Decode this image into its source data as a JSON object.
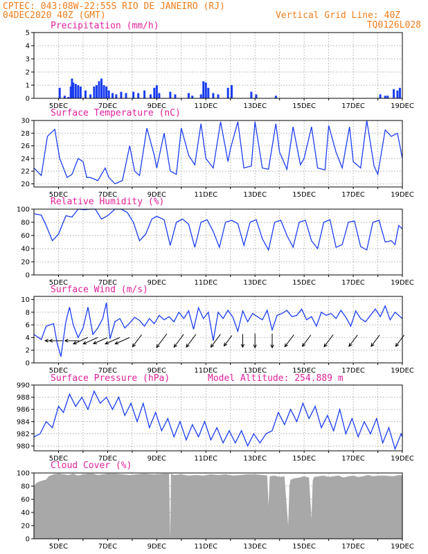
{
  "header": {
    "line1": "CPTEC:   043:08W-22:55S  RIO DE JANEIRO (RJ)",
    "line2": "04DEC2020 40Z (GMT)",
    "grid_note": "Vertical Grid Line: 40Z",
    "code": "TQ0126L028"
  },
  "colors": {
    "header": "#ee7d1a",
    "title": "#e0209a",
    "series": "#1a3cf0",
    "cloud": "#a8a8a8"
  },
  "chart_data": [
    {
      "id": "precip",
      "type": "bar",
      "title": "Precipitation (mm/h)",
      "ylim": [
        0,
        5
      ],
      "yticks": [
        0,
        1,
        2,
        3,
        4,
        5
      ],
      "x_days": [
        4,
        5,
        6,
        7,
        8,
        9,
        10,
        11,
        12,
        13,
        14,
        15,
        16,
        17,
        18,
        19
      ],
      "xticks": [
        "5DEC",
        "7DEC",
        "9DEC",
        "11DEC",
        "13DEC",
        "15DEC",
        "17DEC",
        "19DEC"
      ],
      "x": [
        5.05,
        5.25,
        5.4,
        5.5,
        5.55,
        5.6,
        5.7,
        5.8,
        5.9,
        6.1,
        6.3,
        6.45,
        6.55,
        6.65,
        6.75,
        6.85,
        6.95,
        7.05,
        7.2,
        7.35,
        7.55,
        7.75,
        8.05,
        8.25,
        8.5,
        8.75,
        8.9,
        9.0,
        9.1,
        9.55,
        9.75,
        10.3,
        10.45,
        10.8,
        10.9,
        11.0,
        11.1,
        11.3,
        11.5,
        11.9,
        12.05,
        12.85,
        13.05,
        13.85,
        18.1,
        18.3,
        18.4,
        18.65,
        18.8,
        18.9
      ],
      "values": [
        0.8,
        0.2,
        0.1,
        0.9,
        1.5,
        1.2,
        1.1,
        1.0,
        0.9,
        0.6,
        0.3,
        0.9,
        1.0,
        1.3,
        1.5,
        1.0,
        0.9,
        0.6,
        0.4,
        0.3,
        0.5,
        0.4,
        0.5,
        0.4,
        0.6,
        0.3,
        0.8,
        1.0,
        0.4,
        0.5,
        0.3,
        0.4,
        0.2,
        0.3,
        1.3,
        1.2,
        0.8,
        0.4,
        0.3,
        0.8,
        1.0,
        0.5,
        0.3,
        0.2,
        0.3,
        0.2,
        0.2,
        0.7,
        0.6,
        0.8
      ]
    },
    {
      "id": "temp",
      "type": "line",
      "title": "Surface Temperature (nC)",
      "ylim": [
        19.5,
        30
      ],
      "yticks": [
        20,
        22,
        24,
        26,
        28,
        30
      ],
      "xticks": [
        "5DEC",
        "7DEC",
        "9DEC",
        "11DEC",
        "13DEC",
        "15DEC",
        "17DEC",
        "19DEC"
      ],
      "x": [
        4.0,
        4.3,
        4.55,
        4.85,
        5.05,
        5.35,
        5.55,
        5.8,
        6.0,
        6.15,
        6.3,
        6.6,
        6.9,
        7.05,
        7.3,
        7.6,
        7.9,
        8.1,
        8.3,
        8.6,
        8.9,
        9.0,
        9.3,
        9.55,
        9.8,
        10.0,
        10.3,
        10.55,
        10.8,
        11.0,
        11.3,
        11.6,
        11.9,
        12.0,
        12.3,
        12.55,
        12.85,
        13.0,
        13.3,
        13.55,
        13.85,
        14.0,
        14.3,
        14.55,
        14.85,
        15.0,
        15.3,
        15.55,
        15.85,
        16.0,
        16.3,
        16.55,
        16.85,
        17.0,
        17.3,
        17.55,
        17.85,
        18.0,
        18.3,
        18.55,
        18.8,
        19.0
      ],
      "values": [
        22.5,
        21.3,
        27.5,
        28.6,
        24.0,
        21.0,
        21.5,
        24.0,
        23.5,
        21.0,
        21.0,
        20.5,
        22.5,
        21.0,
        20.0,
        20.5,
        26.0,
        22.0,
        21.3,
        28.8,
        24.5,
        22.5,
        28.0,
        22.0,
        21.5,
        28.8,
        24.5,
        23.0,
        29.5,
        24.0,
        22.5,
        29.8,
        23.5,
        25.5,
        29.8,
        22.5,
        22.8,
        29.8,
        22.5,
        22.3,
        29.5,
        25.0,
        22.3,
        29.0,
        23.0,
        24.0,
        29.0,
        22.5,
        22.2,
        29.2,
        25.0,
        22.5,
        29.0,
        23.5,
        22.5,
        30.0,
        22.8,
        21.5,
        28.5,
        27.5,
        28.0,
        24.0
      ]
    },
    {
      "id": "rh",
      "type": "line",
      "title": "Relative Humidity (%)",
      "ylim": [
        0,
        100
      ],
      "yticks": [
        0,
        20,
        40,
        60,
        80,
        100
      ],
      "xticks": [
        "5DEC",
        "7DEC",
        "9DEC",
        "11DEC",
        "13DEC",
        "15DEC",
        "17DEC",
        "19DEC"
      ],
      "x": [
        4.0,
        4.3,
        4.5,
        4.75,
        5.0,
        5.3,
        5.55,
        5.8,
        6.05,
        6.3,
        6.5,
        6.75,
        7.0,
        7.3,
        7.55,
        7.8,
        8.05,
        8.3,
        8.55,
        8.8,
        9.0,
        9.3,
        9.55,
        9.8,
        10.05,
        10.3,
        10.55,
        10.8,
        11.05,
        11.3,
        11.55,
        11.8,
        12.05,
        12.3,
        12.55,
        12.8,
        13.05,
        13.3,
        13.55,
        13.8,
        14.05,
        14.3,
        14.55,
        14.8,
        15.05,
        15.3,
        15.55,
        15.8,
        16.05,
        16.3,
        16.55,
        16.8,
        17.05,
        17.3,
        17.55,
        17.8,
        18.05,
        18.3,
        18.55,
        18.7,
        18.85,
        19.0
      ],
      "values": [
        93,
        91,
        75,
        52,
        62,
        90,
        88,
        100,
        99,
        100,
        100,
        85,
        90,
        100,
        100,
        95,
        80,
        52,
        62,
        85,
        89,
        84,
        45,
        80,
        85,
        77,
        42,
        80,
        84,
        66,
        42,
        80,
        83,
        78,
        45,
        80,
        84,
        55,
        38,
        80,
        83,
        60,
        42,
        80,
        83,
        52,
        40,
        80,
        84,
        42,
        46,
        80,
        82,
        43,
        38,
        80,
        83,
        50,
        52,
        46,
        75,
        70
      ]
    },
    {
      "id": "wind",
      "type": "line",
      "title": "Surface Wind (m/s)",
      "ylim": [
        0,
        10.5
      ],
      "yticks": [
        0,
        2,
        4,
        6,
        8,
        10
      ],
      "xticks": [
        "5DEC",
        "7DEC",
        "9DEC",
        "11DEC",
        "13DEC",
        "15DEC",
        "17DEC",
        "19DEC"
      ],
      "x": [
        4.0,
        4.3,
        4.5,
        4.8,
        4.95,
        5.1,
        5.3,
        5.45,
        5.6,
        5.8,
        6.0,
        6.2,
        6.4,
        6.6,
        6.8,
        6.95,
        7.1,
        7.3,
        7.5,
        7.7,
        7.9,
        8.1,
        8.3,
        8.5,
        8.7,
        8.9,
        9.1,
        9.3,
        9.5,
        9.7,
        9.9,
        10.1,
        10.3,
        10.5,
        10.7,
        10.9,
        11.1,
        11.3,
        11.5,
        11.7,
        11.9,
        12.1,
        12.3,
        12.5,
        12.7,
        12.9,
        13.1,
        13.3,
        13.5,
        13.7,
        13.9,
        14.1,
        14.3,
        14.5,
        14.7,
        14.9,
        15.1,
        15.3,
        15.5,
        15.7,
        15.9,
        16.1,
        16.3,
        16.5,
        16.7,
        16.9,
        17.1,
        17.3,
        17.5,
        17.7,
        17.9,
        18.1,
        18.3,
        18.5,
        18.7,
        19.0
      ],
      "values": [
        4.5,
        3.7,
        5.8,
        6.2,
        3.0,
        1.0,
        6.5,
        8.8,
        6.0,
        4.0,
        5.5,
        8.8,
        4.5,
        5.5,
        7.0,
        9.5,
        3.8,
        6.5,
        7.0,
        5.5,
        6.3,
        7.2,
        6.7,
        5.8,
        7.0,
        6.2,
        7.5,
        6.8,
        7.3,
        6.5,
        8.0,
        7.0,
        8.2,
        5.3,
        8.7,
        7.0,
        8.0,
        3.5,
        8.0,
        7.0,
        8.3,
        7.2,
        5.0,
        8.2,
        6.5,
        7.8,
        7.3,
        6.8,
        8.3,
        5.2,
        7.5,
        7.8,
        8.3,
        7.3,
        7.5,
        8.5,
        6.8,
        7.3,
        5.8,
        8.0,
        7.5,
        7.8,
        7.0,
        8.3,
        7.2,
        5.8,
        8.2,
        7.0,
        6.5,
        7.5,
        8.5,
        7.3,
        9.0,
        6.8,
        8.0,
        7.0
      ],
      "barbs": [
        {
          "x": 4.7,
          "speed": 4,
          "dir": "E"
        },
        {
          "x": 4.9,
          "speed": 5,
          "dir": "E"
        },
        {
          "x": 5.55,
          "speed": 6,
          "dir": "E"
        },
        {
          "x": 5.9,
          "speed": 8,
          "dir": "ESE"
        },
        {
          "x": 6.3,
          "speed": 8,
          "dir": "ESE"
        },
        {
          "x": 6.7,
          "speed": 7,
          "dir": "ESE"
        },
        {
          "x": 7.2,
          "speed": 8,
          "dir": "ESE"
        },
        {
          "x": 7.6,
          "speed": 8,
          "dir": "ESE"
        },
        {
          "x": 8.2,
          "speed": 7,
          "dir": "NE"
        },
        {
          "x": 9.2,
          "speed": 9,
          "dir": "NE"
        },
        {
          "x": 9.9,
          "speed": 8,
          "dir": "NE"
        },
        {
          "x": 10.4,
          "speed": 8,
          "dir": "NE"
        },
        {
          "x": 11.4,
          "speed": 8,
          "dir": "NE"
        },
        {
          "x": 11.9,
          "speed": 5,
          "dir": "NE"
        },
        {
          "x": 12.5,
          "speed": 5,
          "dir": "N"
        },
        {
          "x": 13.0,
          "speed": 6,
          "dir": "N"
        },
        {
          "x": 13.7,
          "speed": 6,
          "dir": "N"
        },
        {
          "x": 14.4,
          "speed": 7,
          "dir": "NE"
        },
        {
          "x": 15.1,
          "speed": 6,
          "dir": "NE"
        },
        {
          "x": 16.0,
          "speed": 7,
          "dir": "NE"
        },
        {
          "x": 17.0,
          "speed": 6,
          "dir": "NE"
        },
        {
          "x": 17.9,
          "speed": 6,
          "dir": "NE"
        },
        {
          "x": 18.9,
          "speed": 6,
          "dir": "NE"
        }
      ]
    },
    {
      "id": "pres",
      "type": "line",
      "title": "Surface Pressure (hPa)",
      "model_altitude": "Model Altitude: 254.889 m",
      "ylim": [
        979.2,
        990
      ],
      "yticks": [
        980,
        982,
        984,
        986,
        988,
        990
      ],
      "xticks": [
        "5DEC",
        "7DEC",
        "9DEC",
        "11DEC",
        "13DEC",
        "15DEC",
        "17DEC",
        "19DEC"
      ],
      "x": [
        4.0,
        4.25,
        4.5,
        4.75,
        5.0,
        5.2,
        5.45,
        5.7,
        5.95,
        6.2,
        6.45,
        6.7,
        6.95,
        7.2,
        7.45,
        7.7,
        7.95,
        8.2,
        8.45,
        8.7,
        8.95,
        9.2,
        9.45,
        9.7,
        9.95,
        10.2,
        10.45,
        10.7,
        10.95,
        11.2,
        11.45,
        11.7,
        11.95,
        12.2,
        12.45,
        12.7,
        12.95,
        13.2,
        13.45,
        13.7,
        13.95,
        14.2,
        14.45,
        14.7,
        14.95,
        15.2,
        15.45,
        15.7,
        15.95,
        16.2,
        16.45,
        16.7,
        16.95,
        17.2,
        17.45,
        17.7,
        17.95,
        18.2,
        18.45,
        18.7,
        18.95,
        19.0
      ],
      "values": [
        981.5,
        982.0,
        984.0,
        983.0,
        986.5,
        985.5,
        988.5,
        986.5,
        988.0,
        986.0,
        989.0,
        987.0,
        988.0,
        986.0,
        988.0,
        985.0,
        987.0,
        984.0,
        987.0,
        983.0,
        985.5,
        982.5,
        984.5,
        981.5,
        984.0,
        981.0,
        983.5,
        981.5,
        984.0,
        981.0,
        983.0,
        980.5,
        982.5,
        980.5,
        982.5,
        980.0,
        982.0,
        980.5,
        982.0,
        982.5,
        985.5,
        983.5,
        986.0,
        984.0,
        987.0,
        984.5,
        986.5,
        983.0,
        985.0,
        982.5,
        986.0,
        982.0,
        984.5,
        981.5,
        984.0,
        982.0,
        984.5,
        980.5,
        983.0,
        979.5,
        982.0,
        981.5
      ]
    },
    {
      "id": "cloud",
      "type": "area",
      "title": "Cloud Cover (%)",
      "ylim": [
        0,
        100
      ],
      "yticks": [
        0,
        20,
        40,
        60,
        80,
        100
      ],
      "xticks": [
        "5DEC",
        "7DEC",
        "9DEC",
        "11DEC",
        "13DEC",
        "15DEC",
        "17DEC",
        "19DEC"
      ],
      "x": [
        4.0,
        4.1,
        4.3,
        4.5,
        4.6,
        4.8,
        5.0,
        5.2,
        5.4,
        5.6,
        5.8,
        6.0,
        6.2,
        6.4,
        6.6,
        6.8,
        7.0,
        7.3,
        7.6,
        7.9,
        8.2,
        8.5,
        8.8,
        9.0,
        9.3,
        9.5,
        9.55,
        9.58,
        9.7,
        10.0,
        10.3,
        10.6,
        10.9,
        11.2,
        11.5,
        11.8,
        12.1,
        12.4,
        12.7,
        13.0,
        13.3,
        13.5,
        13.55,
        13.6,
        13.8,
        14.0,
        14.2,
        14.35,
        14.4,
        14.45,
        14.6,
        14.8,
        15.0,
        15.2,
        15.3,
        15.35,
        15.4,
        15.6,
        15.8,
        16.0,
        16.2,
        16.4,
        16.6,
        16.8,
        17.0,
        17.2,
        17.4,
        17.6,
        17.8,
        18.0,
        18.3,
        18.6,
        18.9,
        19.0
      ],
      "values": [
        80,
        85,
        88,
        90,
        95,
        98,
        99,
        98,
        97,
        99,
        96,
        98,
        99,
        99,
        97,
        98,
        99,
        99,
        98,
        97,
        98,
        99,
        98,
        98,
        99,
        99,
        0,
        99,
        97,
        98,
        96,
        97,
        96,
        98,
        97,
        98,
        96,
        97,
        98,
        98,
        97,
        96,
        50,
        95,
        96,
        94,
        95,
        20,
        80,
        90,
        92,
        93,
        95,
        93,
        30,
        88,
        94,
        95,
        96,
        94,
        95,
        96,
        93,
        95,
        96,
        94,
        95,
        97,
        95,
        96,
        96,
        95,
        97,
        96
      ]
    }
  ]
}
